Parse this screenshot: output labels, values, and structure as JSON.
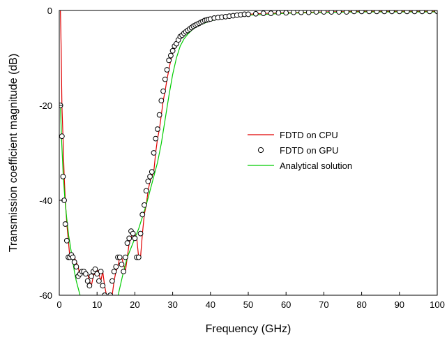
{
  "chart_data": {
    "type": "line",
    "title": "",
    "xlabel": "Frequency (GHz)",
    "ylabel": "Transmission coefficient magnitude (dB)",
    "xlim": [
      0,
      100
    ],
    "ylim": [
      -60,
      0
    ],
    "xticks": [
      "0",
      "10",
      "20",
      "30",
      "40",
      "50",
      "60",
      "70",
      "80",
      "90",
      "100"
    ],
    "yticks": [
      "0",
      "-20",
      "-40",
      "-60"
    ],
    "grid": false,
    "legend_position": "center-right",
    "series": [
      {
        "name": "FDTD on CPU",
        "style": "line",
        "color": "#e00000",
        "x": [
          0.3,
          0.5,
          0.7,
          1.0,
          1.3,
          1.6,
          2.0,
          2.4,
          2.8,
          3.2,
          3.6,
          4.0,
          4.5,
          5.0,
          5.5,
          6.0,
          6.5,
          7.0,
          7.5,
          8.0,
          8.5,
          9.0,
          9.5,
          10.0,
          10.5,
          11.0,
          11.5,
          12.0,
          12.5,
          13.0,
          13.5,
          14.0,
          14.5,
          15.0,
          15.5,
          16.0,
          16.5,
          17.0,
          17.5,
          18.0,
          18.5,
          19.0,
          19.5,
          20.0,
          20.5,
          21.0,
          21.5,
          22.0,
          22.5,
          23.0,
          23.5,
          24.0,
          24.5,
          25.0,
          25.5,
          26.0,
          26.5,
          27.0,
          27.5,
          28.0,
          28.5,
          29.0,
          29.5,
          30.0,
          31.0,
          32.0,
          33.0,
          34.0,
          35.0,
          36.0,
          38.0,
          40.0,
          42.0,
          45.0,
          50.0,
          55.0,
          60.0,
          70.0,
          80.0,
          90.0,
          100.0
        ],
        "y": [
          0,
          -8,
          -20,
          -27,
          -35,
          -40,
          -45,
          -48.5,
          -52,
          -52,
          -51.5,
          -52,
          -53,
          -54,
          -56,
          -55.5,
          -55,
          -55,
          -55.5,
          -57,
          -58,
          -56,
          -55,
          -54.5,
          -55.5,
          -57,
          -55,
          -58,
          -60,
          -62,
          -62,
          -60,
          -57,
          -55,
          -54,
          -52,
          -52,
          -53.5,
          -55,
          -52,
          -49,
          -48,
          -46.5,
          -47,
          -48,
          -52,
          -52,
          -47,
          -43,
          -41,
          -38,
          -36,
          -35,
          -34,
          -30,
          -27,
          -25,
          -22,
          -19,
          -17,
          -14.5,
          -12.5,
          -10.5,
          -9,
          -7,
          -5.5,
          -4.5,
          -4,
          -3.5,
          -3,
          -2.2,
          -1.7,
          -1.4,
          -1.1,
          -0.8,
          -0.6,
          -0.5,
          -0.3,
          -0.2,
          -0.2,
          -0.2
        ]
      },
      {
        "name": "FDTD on GPU",
        "style": "markers",
        "color": "#000000",
        "x": [
          0.3,
          0.7,
          1.0,
          1.3,
          1.6,
          2.0,
          2.4,
          2.8,
          3.2,
          3.6,
          4.0,
          4.5,
          5.0,
          5.5,
          6.0,
          6.5,
          7.0,
          7.5,
          8.0,
          8.5,
          9.0,
          9.5,
          10.0,
          10.5,
          11.0,
          11.5,
          12.0,
          12.5,
          13.0,
          13.5,
          14.0,
          14.5,
          15.0,
          15.5,
          16.0,
          16.5,
          17.0,
          17.5,
          18.0,
          18.5,
          19.0,
          19.5,
          20.0,
          20.5,
          21.0,
          21.5,
          22.0,
          22.5,
          23.0,
          23.5,
          24.0,
          24.5,
          25.0,
          25.5,
          26.0,
          26.5,
          27.0,
          27.5,
          28.0,
          28.5,
          29.0,
          29.5,
          30.0,
          30.5,
          31.0,
          31.5,
          32.0,
          32.5,
          33.0,
          33.5,
          34.0,
          34.5,
          35.0,
          35.5,
          36.0,
          36.5,
          37.0,
          37.5,
          38.0,
          38.5,
          39.0,
          39.5,
          40.0,
          41.0,
          42.0,
          43.0,
          44.0,
          45.0,
          46.0,
          47.0,
          48.0,
          49.0,
          50.0,
          52.0,
          54.0,
          56.0,
          58.0,
          60.0,
          62.0,
          64.0,
          66.0,
          68.0,
          70.0,
          72.0,
          74.0,
          76.0,
          78.0,
          80.0,
          82.0,
          84.0,
          86.0,
          88.0,
          90.0,
          92.0,
          94.0,
          96.0,
          98.0,
          100.0
        ],
        "y": [
          -20,
          -26.5,
          -35,
          -40,
          -45,
          -48.5,
          -52,
          -52,
          -51.5,
          -52,
          -53,
          -54,
          -56,
          -55.5,
          -55,
          -55,
          -55.5,
          -57,
          -58,
          -56,
          -55,
          -54.5,
          -55.5,
          -57,
          -55,
          -58,
          -60,
          -61.5,
          -61.5,
          -60,
          -57,
          -55,
          -54,
          -52,
          -52,
          -53.5,
          -55,
          -52,
          -49,
          -48,
          -46.5,
          -47,
          -48,
          -52,
          -52,
          -47,
          -43,
          -41,
          -38,
          -36,
          -35,
          -34,
          -30,
          -27,
          -25,
          -22,
          -19,
          -17,
          -14.5,
          -12.5,
          -10.5,
          -9.5,
          -8.5,
          -7.5,
          -7,
          -6.2,
          -5.5,
          -5.2,
          -4.8,
          -4.5,
          -4.2,
          -3.9,
          -3.6,
          -3.3,
          -3.1,
          -2.9,
          -2.7,
          -2.5,
          -2.3,
          -2.1,
          -2.0,
          -1.9,
          -1.8,
          -1.6,
          -1.5,
          -1.4,
          -1.3,
          -1.2,
          -1.1,
          -1.0,
          -0.9,
          -0.8,
          -0.8,
          -0.7,
          -0.6,
          -0.6,
          -0.5,
          -0.5,
          -0.4,
          -0.4,
          -0.4,
          -0.3,
          -0.3,
          -0.3,
          -0.3,
          -0.3,
          -0.2,
          -0.2,
          -0.2,
          -0.2,
          -0.2,
          -0.2,
          -0.2,
          -0.2,
          -0.2,
          -0.2,
          -0.2,
          -0.2
        ]
      },
      {
        "name": "Analytical solution",
        "style": "line",
        "color": "#00cc00",
        "x": [
          0.3,
          0.6,
          1.0,
          1.5,
          2.0,
          2.5,
          3.0,
          3.5,
          4.0,
          4.5,
          5.0,
          5.5,
          6.0,
          15.0,
          16.0,
          17.0,
          18.0,
          19.0,
          20.0,
          21.0,
          22.0,
          23.0,
          24.0,
          25.0,
          26.0,
          27.0,
          28.0,
          29.0,
          30.0,
          31.0,
          32.0,
          33.0,
          34.0,
          35.0,
          36.0,
          38.0,
          40.0,
          42.0,
          45.0,
          50.0,
          55.0,
          60.0,
          70.0,
          80.0,
          90.0,
          100.0
        ],
        "y": [
          -20,
          -27,
          -34,
          -40,
          -44,
          -47.5,
          -50,
          -52.5,
          -55,
          -57,
          -58.5,
          -60,
          -62,
          -62,
          -58.5,
          -55,
          -52,
          -50,
          -48,
          -46,
          -43.5,
          -41,
          -38,
          -35,
          -32,
          -28,
          -23,
          -18,
          -13.5,
          -10,
          -7.5,
          -6,
          -5,
          -4.2,
          -3.6,
          -2.8,
          -2.2,
          -1.8,
          -1.4,
          -1.0,
          -0.8,
          -0.6,
          -0.4,
          -0.3,
          -0.3,
          -0.3
        ]
      }
    ]
  }
}
